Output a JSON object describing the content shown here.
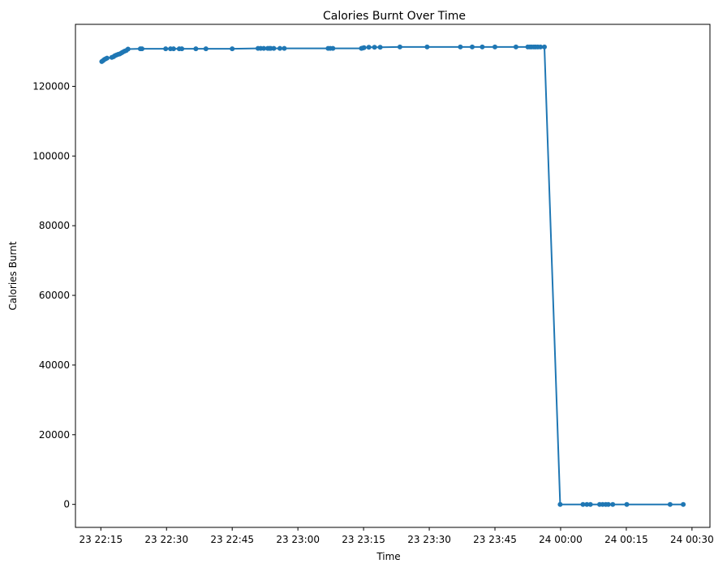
{
  "chart_data": {
    "type": "line",
    "title": "Calories Burnt Over Time",
    "xlabel": "Time",
    "ylabel": "Calories Burnt",
    "grid": false,
    "legend": "none",
    "color": "#1f77b4",
    "x_unit": "minutes",
    "xlim": [
      -5.8,
      139.1
    ],
    "ylim": [
      -6600,
      137800
    ],
    "x_ticks": [
      {
        "value": 0,
        "label": "23 22:15"
      },
      {
        "value": 15,
        "label": "23 22:30"
      },
      {
        "value": 30,
        "label": "23 22:45"
      },
      {
        "value": 45,
        "label": "23 23:00"
      },
      {
        "value": 60,
        "label": "23 23:15"
      },
      {
        "value": 75,
        "label": "23 23:30"
      },
      {
        "value": 90,
        "label": "23 23:45"
      },
      {
        "value": 105,
        "label": "24 00:00"
      },
      {
        "value": 120,
        "label": "24 00:15"
      },
      {
        "value": 135,
        "label": "24 00:30"
      }
    ],
    "y_ticks": [
      {
        "value": 0,
        "label": "0"
      },
      {
        "value": 20000,
        "label": "20000"
      },
      {
        "value": 40000,
        "label": "40000"
      },
      {
        "value": 60000,
        "label": "60000"
      },
      {
        "value": 80000,
        "label": "80000"
      },
      {
        "value": 100000,
        "label": "100000"
      },
      {
        "value": 120000,
        "label": "120000"
      }
    ],
    "series": [
      {
        "x": [
          0.2,
          0.5,
          0.8,
          1.1,
          1.4,
          2.5,
          2.9,
          3.2,
          3.6,
          4.0,
          4.3,
          4.7,
          5.0,
          5.4,
          5.8,
          6.2,
          9.0,
          9.4,
          14.8,
          15.9,
          16.6,
          17.9,
          18.5,
          21.7,
          24.0,
          30.0,
          35.9,
          36.5,
          37.2,
          38.1,
          38.5,
          38.8,
          39.5,
          40.9,
          41.9,
          51.9,
          52.4,
          53.0,
          59.5,
          59.8,
          60.1,
          61.2,
          62.5,
          63.8,
          68.3,
          74.5,
          82.1,
          84.8,
          87.1,
          90.0,
          94.8,
          97.5,
          98.0,
          98.4,
          98.9,
          99.3,
          99.8,
          100.4,
          101.3,
          104.9,
          110.1,
          111.0,
          111.8,
          113.9,
          114.6,
          115.3,
          115.9,
          116.9,
          120.1,
          130.0,
          133.0
        ],
        "y": [
          127100,
          127400,
          127700,
          127900,
          128100,
          128300,
          128500,
          128800,
          129000,
          129200,
          129300,
          129600,
          129800,
          130100,
          130300,
          130700,
          130800,
          130800,
          130800,
          130800,
          130800,
          130800,
          130800,
          130800,
          130800,
          130800,
          130900,
          130900,
          130900,
          130900,
          130900,
          130900,
          130900,
          130900,
          130900,
          130900,
          130900,
          130900,
          130900,
          131000,
          131100,
          131200,
          131200,
          131200,
          131300,
          131300,
          131300,
          131300,
          131300,
          131300,
          131300,
          131300,
          131300,
          131300,
          131300,
          131300,
          131300,
          131300,
          131300,
          0,
          0,
          0,
          0,
          0,
          0,
          0,
          0,
          0,
          0,
          0,
          0
        ]
      }
    ]
  }
}
